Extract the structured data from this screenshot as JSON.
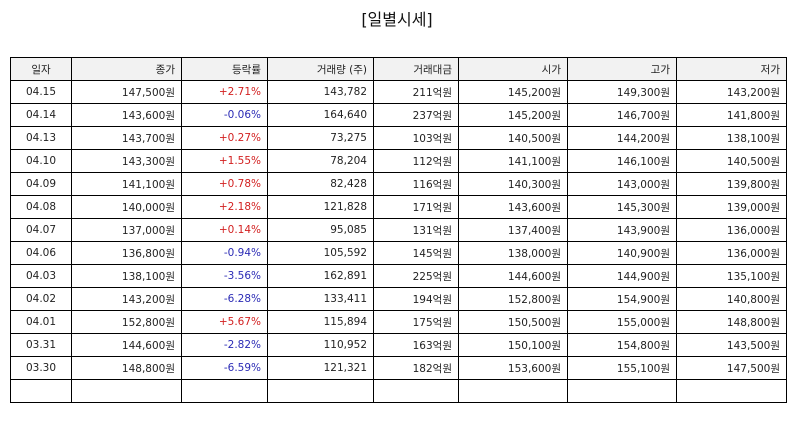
{
  "title": "[일별시세]",
  "colors": {
    "up": "#d21f1f",
    "down": "#2b2bb5"
  },
  "table": {
    "headers": [
      "일자",
      "종가",
      "등락률",
      "거래량 (주)",
      "거래대금",
      "시가",
      "고가",
      "저가"
    ],
    "rows": [
      [
        "04.15",
        "147,500원",
        "+2.71%",
        "143,782",
        "211억원",
        "145,200원",
        "149,300원",
        "143,200원"
      ],
      [
        "04.14",
        "143,600원",
        "-0.06%",
        "164,640",
        "237억원",
        "145,200원",
        "146,700원",
        "141,800원"
      ],
      [
        "04.13",
        "143,700원",
        "+0.27%",
        "73,275",
        "103억원",
        "140,500원",
        "144,200원",
        "138,100원"
      ],
      [
        "04.10",
        "143,300원",
        "+1.55%",
        "78,204",
        "112억원",
        "141,100원",
        "146,100원",
        "140,500원"
      ],
      [
        "04.09",
        "141,100원",
        "+0.78%",
        "82,428",
        "116억원",
        "140,300원",
        "143,000원",
        "139,800원"
      ],
      [
        "04.08",
        "140,000원",
        "+2.18%",
        "121,828",
        "171억원",
        "143,600원",
        "145,300원",
        "139,000원"
      ],
      [
        "04.07",
        "137,000원",
        "+0.14%",
        "95,085",
        "131억원",
        "137,400원",
        "143,900원",
        "136,000원"
      ],
      [
        "04.06",
        "136,800원",
        "-0.94%",
        "105,592",
        "145억원",
        "138,000원",
        "140,900원",
        "136,000원"
      ],
      [
        "04.03",
        "138,100원",
        "-3.56%",
        "162,891",
        "225억원",
        "144,600원",
        "144,900원",
        "135,100원"
      ],
      [
        "04.02",
        "143,200원",
        "-6.28%",
        "133,411",
        "194억원",
        "152,800원",
        "154,900원",
        "140,800원"
      ],
      [
        "04.01",
        "152,800원",
        "+5.67%",
        "115,894",
        "175억원",
        "150,500원",
        "155,000원",
        "148,800원"
      ],
      [
        "03.31",
        "144,600원",
        "-2.82%",
        "110,952",
        "163억원",
        "150,100원",
        "154,800원",
        "143,500원"
      ],
      [
        "03.30",
        "148,800원",
        "-6.59%",
        "121,321",
        "182억원",
        "153,600원",
        "155,100원",
        "147,500원"
      ],
      [
        "",
        "",
        "",
        "",
        "",
        "",
        "",
        ""
      ]
    ]
  }
}
